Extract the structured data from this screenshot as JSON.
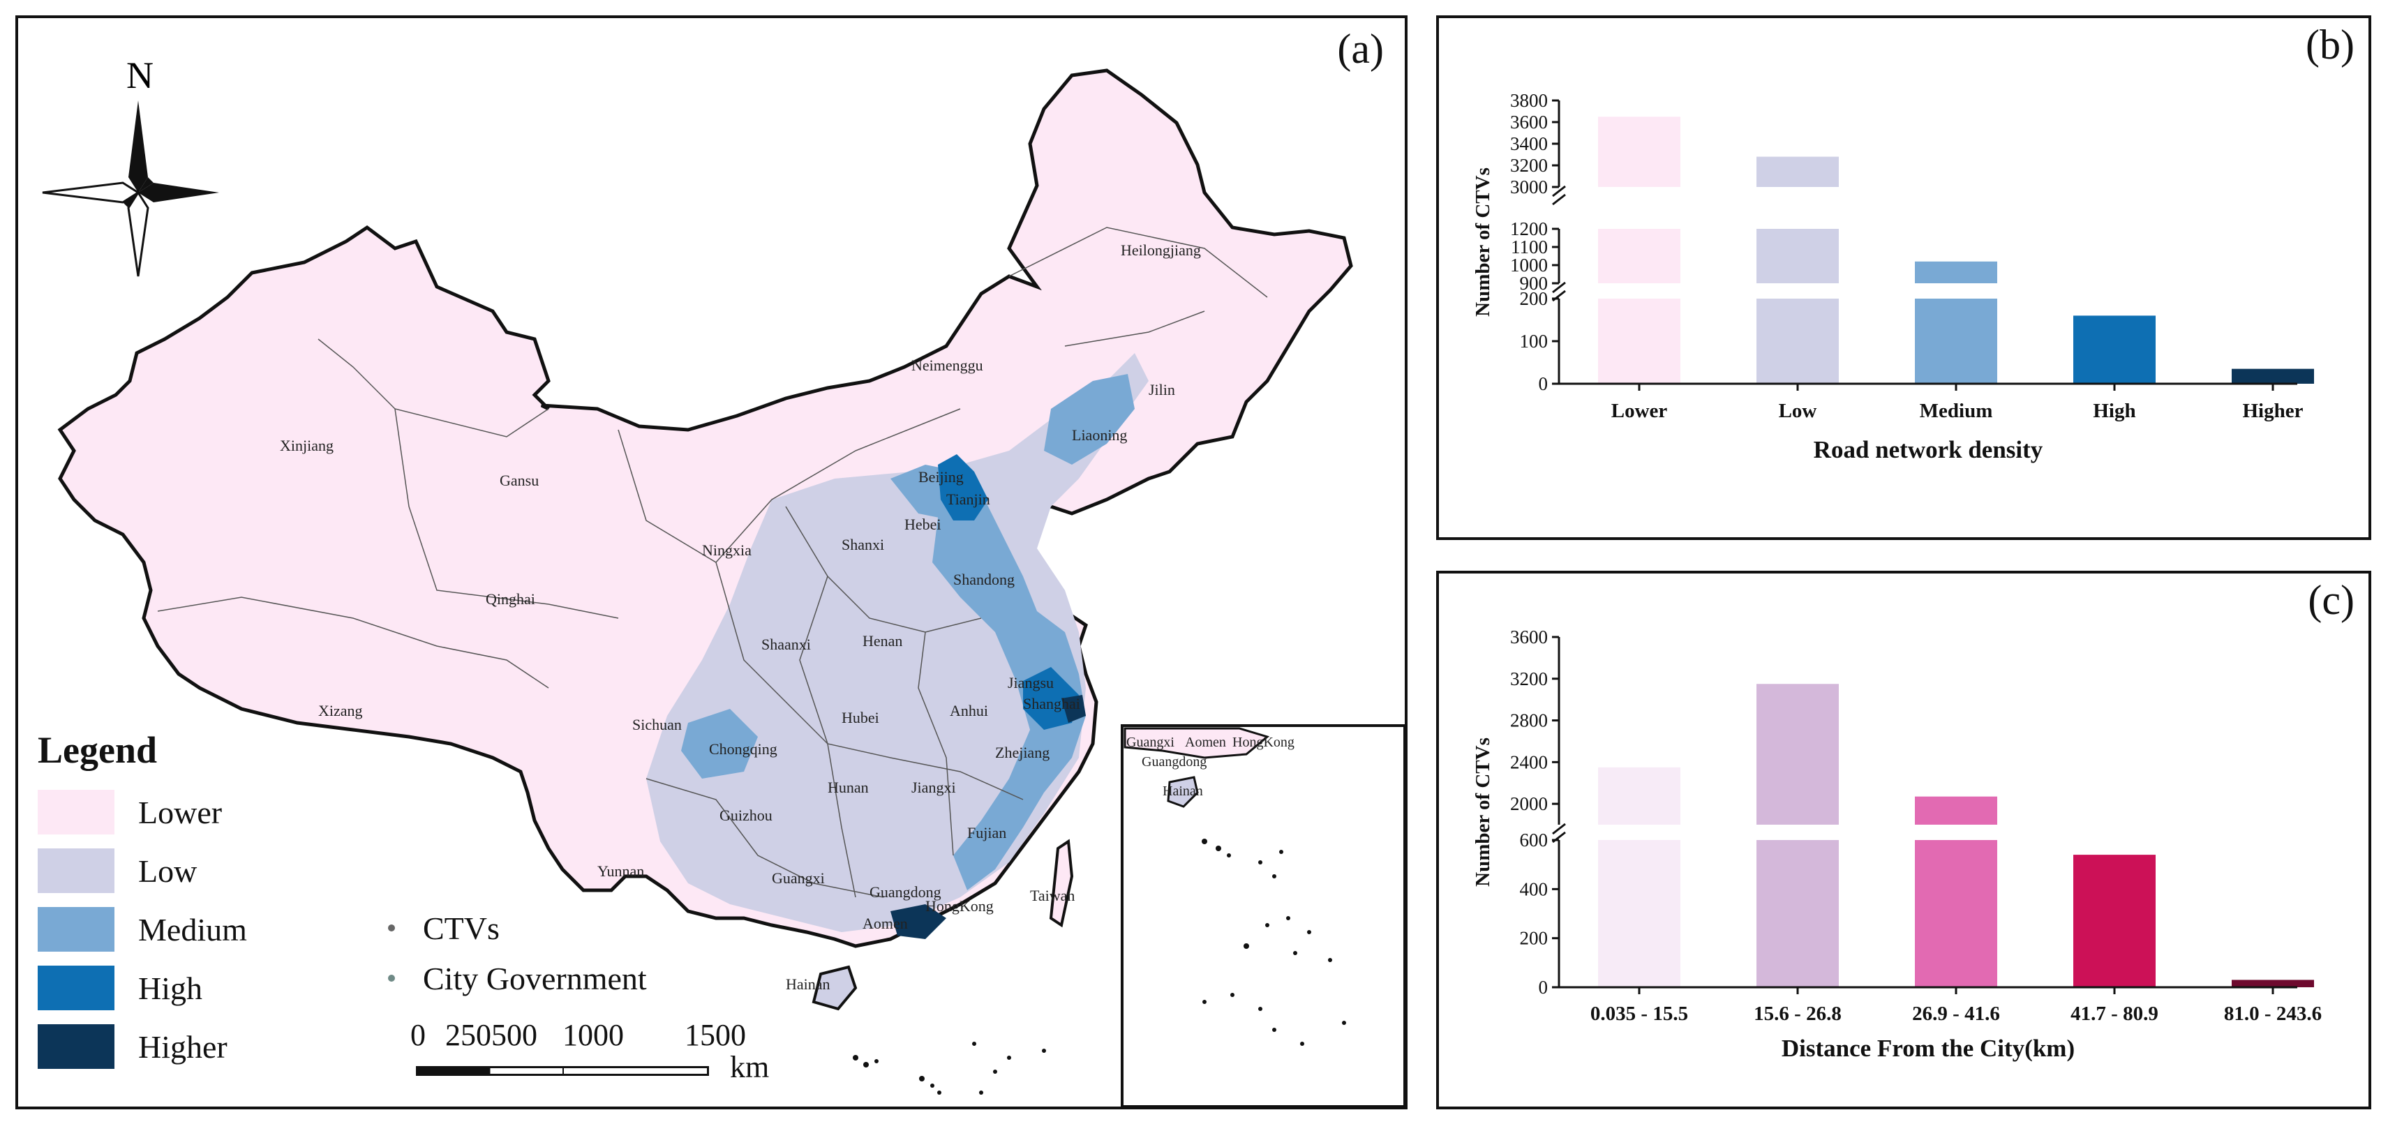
{
  "panel_a": {
    "label": "(a)",
    "north_label": "N",
    "legend": {
      "title": "Legend",
      "items": [
        {
          "label": "Lower",
          "color": "#fde8f5"
        },
        {
          "label": "Low",
          "color": "#cfd0e6"
        },
        {
          "label": "Medium",
          "color": "#79a9d4"
        },
        {
          "label": "High",
          "color": "#0e6fb3"
        },
        {
          "label": "Higher",
          "color": "#0c3558"
        }
      ]
    },
    "symbols": [
      {
        "label": "CTVs",
        "color": "#666666"
      },
      {
        "label": "City Government",
        "color": "#6f8a86"
      }
    ],
    "scale": {
      "ticks": [
        "0",
        "250",
        "500",
        "1000",
        "1500"
      ],
      "unit": "km"
    },
    "province_labels": [
      "Xinjiang",
      "Xizang",
      "Qinghai",
      "Gansu",
      "Neimenggu",
      "Heilongjiang",
      "Jilin",
      "Liaoning",
      "Beijing",
      "Tianjin",
      "Hebei",
      "Shanxi",
      "Ningxia",
      "Shandong",
      "Shaanxi",
      "Henan",
      "Jiangsu",
      "Shanghai",
      "Anhui",
      "Hubei",
      "Sichuan",
      "Chongqing",
      "Zhejiang",
      "Hunan",
      "Jiangxi",
      "Guizhou",
      "Fujian",
      "Yunnan",
      "Guangxi",
      "Guangdong",
      "Taiwan",
      "HongKong",
      "Aomen",
      "Hainan"
    ],
    "inset_labels": [
      "Guangxi",
      "Aomen",
      "HongKong",
      "Guangdong",
      "Hainan"
    ]
  },
  "chart_data": [
    {
      "type": "bar",
      "label": "(b)",
      "categories": [
        "Lower",
        "Low",
        "Medium",
        "High",
        "Higher"
      ],
      "values": [
        3650,
        3280,
        1020,
        160,
        35
      ],
      "colors": [
        "#fde8f5",
        "#cfd0e6",
        "#79a9d4",
        "#0e6fb3",
        "#0c3558"
      ],
      "xlabel": "Road network density",
      "ylabel": "Number of CTVs",
      "axis_break": true,
      "segments": [
        {
          "range": [
            0,
            200
          ],
          "ticks": [
            0,
            100,
            200
          ]
        },
        {
          "range": [
            900,
            1200
          ],
          "ticks": [
            900,
            1000,
            1100,
            1200
          ]
        },
        {
          "range": [
            3000,
            3800
          ],
          "ticks": [
            3000,
            3200,
            3400,
            3600,
            3800
          ]
        }
      ]
    },
    {
      "type": "bar",
      "label": "(c)",
      "categories": [
        "0.035 - 15.5",
        "15.6 - 26.8",
        "26.9 - 41.6",
        "41.7 - 80.9",
        "81.0 - 243.6"
      ],
      "values": [
        2350,
        3150,
        2070,
        540,
        30
      ],
      "colors": [
        "#f7ebf7",
        "#d4b8da",
        "#e26ab2",
        "#cc1157",
        "#6e0a2e"
      ],
      "xlabel": "Distance From the City(km)",
      "ylabel": "Number of CTVs",
      "axis_break": true,
      "segments": [
        {
          "range": [
            0,
            600
          ],
          "ticks": [
            0,
            200,
            400,
            600
          ]
        },
        {
          "range": [
            1800,
            3600
          ],
          "ticks": [
            2000,
            2400,
            2800,
            3200,
            3600
          ]
        }
      ]
    }
  ]
}
